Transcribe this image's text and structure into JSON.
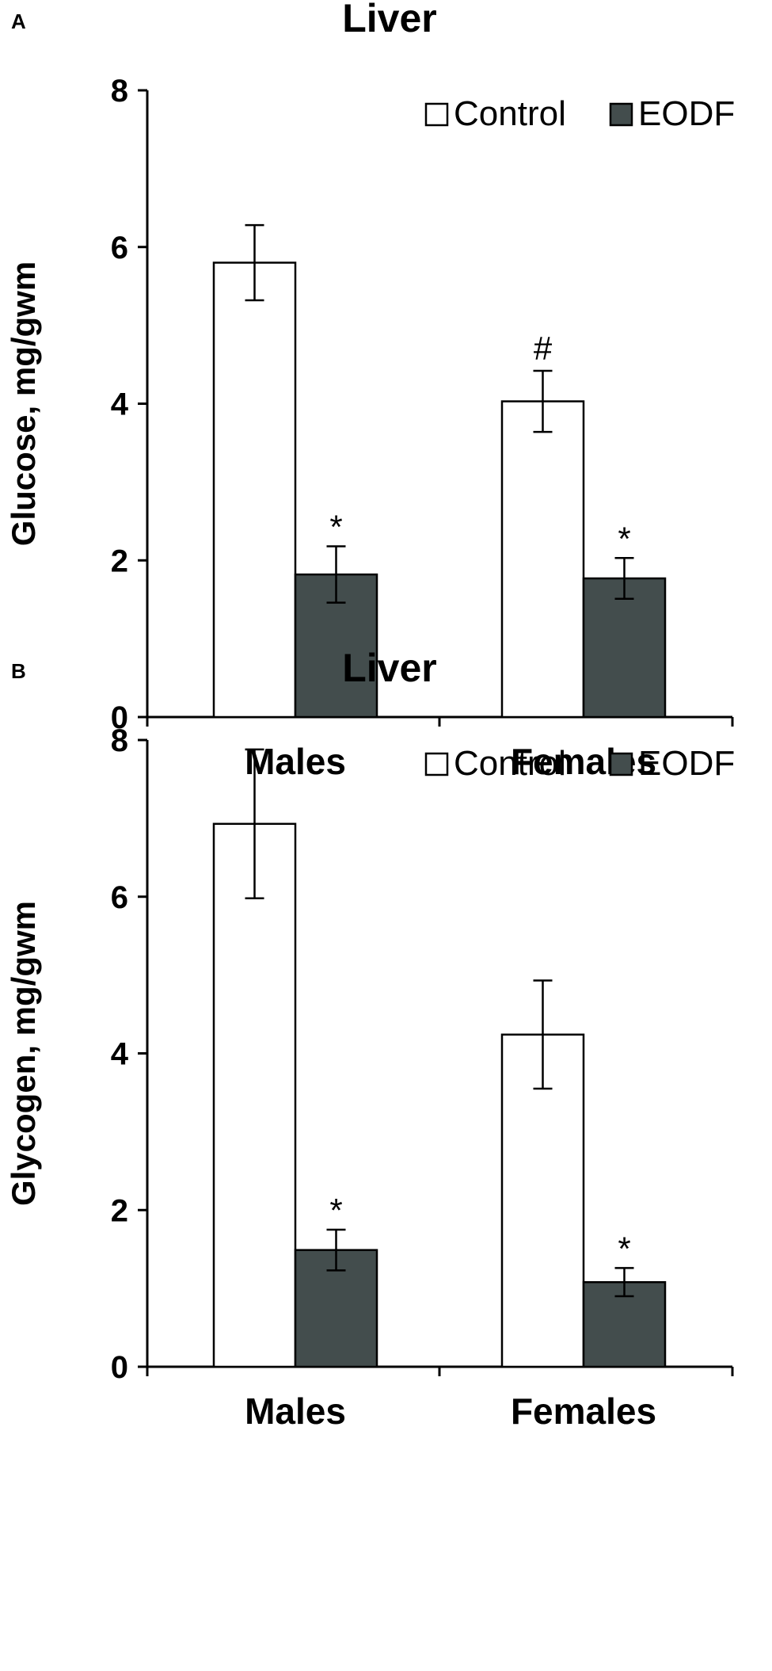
{
  "chart_data": [
    {
      "panel": "A",
      "type": "bar",
      "title": "Liver",
      "xlabel": "",
      "ylabel": "Glucose, mg/gwm",
      "ylim": [
        0,
        8
      ],
      "yticks": [
        "0",
        "2",
        "4",
        "6",
        "8"
      ],
      "categories": [
        "Males",
        "Females"
      ],
      "legend_position": "top-right",
      "series": [
        {
          "name": "Control",
          "color": "#ffffff",
          "values": [
            5.8,
            4.03
          ],
          "errors": [
            0.48,
            0.39
          ],
          "marks": [
            "",
            "#"
          ]
        },
        {
          "name": "EODF",
          "color": "#434d4d",
          "values": [
            1.82,
            1.77
          ],
          "errors": [
            0.36,
            0.26
          ],
          "marks": [
            "*",
            "*"
          ]
        }
      ]
    },
    {
      "panel": "B",
      "type": "bar",
      "title": "Liver",
      "xlabel": "",
      "ylabel": "Glycogen, mg/gwm",
      "ylim": [
        0,
        8
      ],
      "yticks": [
        "0",
        "2",
        "4",
        "6",
        "8"
      ],
      "categories": [
        "Males",
        "Females"
      ],
      "legend_position": "top-right",
      "series": [
        {
          "name": "Control",
          "color": "#ffffff",
          "values": [
            6.93,
            4.24
          ],
          "errors": [
            0.95,
            0.69
          ],
          "marks": [
            "",
            ""
          ]
        },
        {
          "name": "EODF",
          "color": "#434d4d",
          "values": [
            1.49,
            1.08
          ],
          "errors": [
            0.26,
            0.18
          ],
          "marks": [
            "*",
            "*"
          ]
        }
      ]
    }
  ]
}
